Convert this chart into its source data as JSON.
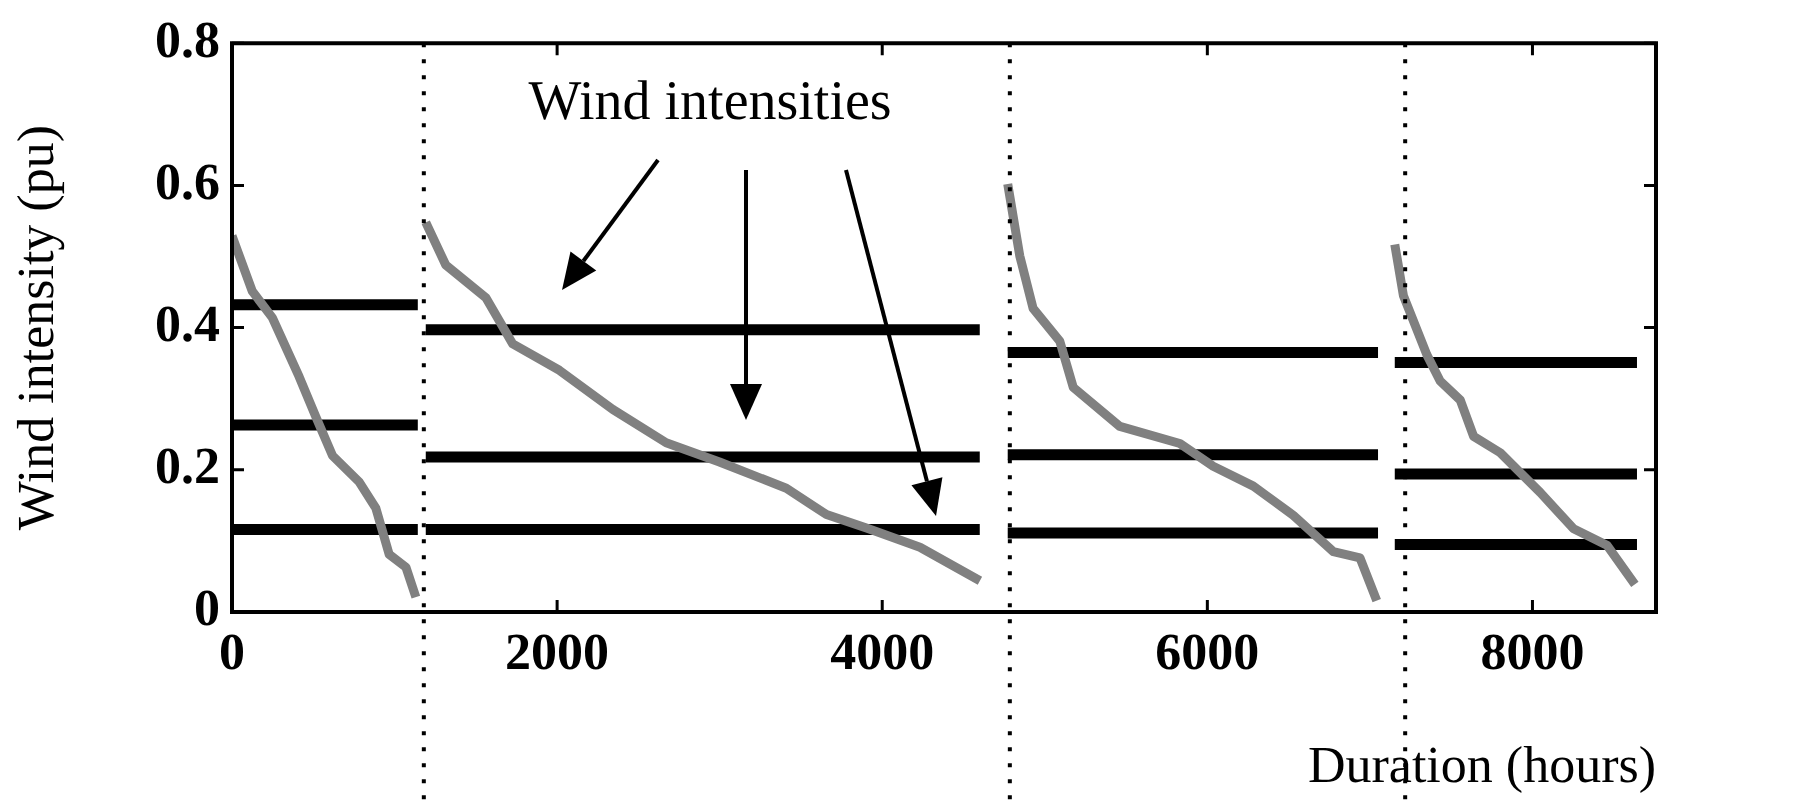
{
  "chart_data": {
    "type": "line",
    "xlabel": "Duration (hours)",
    "ylabel": "Wind intensity (pu)",
    "annotations": [
      "Wind intensities"
    ],
    "xlim": [
      0,
      8760
    ],
    "xticks": [
      0,
      2000,
      4000,
      6000,
      8000
    ],
    "ylim": [
      0,
      0.8
    ],
    "yticks": [
      0,
      0.2,
      0.4,
      0.6,
      0.8
    ],
    "grid": false,
    "legend": false,
    "marker": "none",
    "line_style": "solid",
    "ref_lines": [
      {
        "axis": "x",
        "value": 1180,
        "label": null,
        "line_style": "dotted",
        "color": "#000000"
      },
      {
        "axis": "x",
        "value": 4785,
        "label": null,
        "line_style": "dotted",
        "color": "#000000"
      },
      {
        "axis": "x",
        "value": 7217,
        "label": null,
        "line_style": "dotted",
        "color": "#000000"
      }
    ],
    "series": [
      {
        "color": "#808080",
        "x": [
          0,
          125,
          248,
          413,
          515,
          618,
          782,
          885,
          967,
          1070,
          1131
        ],
        "values": [
          0.529,
          0.451,
          0.414,
          0.331,
          0.275,
          0.22,
          0.183,
          0.146,
          0.081,
          0.063,
          0.021
        ]
      },
      {
        "color": "#808080",
        "x": [
          1192,
          1315,
          1562,
          1727,
          2014,
          2342,
          2671,
          2999,
          3410,
          3657,
          3903,
          4232,
          4601
        ],
        "values": [
          0.548,
          0.488,
          0.442,
          0.377,
          0.34,
          0.285,
          0.238,
          0.211,
          0.174,
          0.137,
          0.118,
          0.091,
          0.044
        ]
      },
      {
        "color": "#808080",
        "x": [
          4772,
          4846,
          4928,
          5092,
          5175,
          5462,
          5831,
          6036,
          6283,
          6529,
          6775,
          6939,
          7042
        ],
        "values": [
          0.602,
          0.501,
          0.427,
          0.381,
          0.316,
          0.261,
          0.237,
          0.205,
          0.177,
          0.136,
          0.085,
          0.076,
          0.016
        ]
      },
      {
        "color": "#808080",
        "x": [
          7153,
          7206,
          7350,
          7432,
          7556,
          7638,
          7802,
          8048,
          8253,
          8458,
          8630
        ],
        "values": [
          0.517,
          0.445,
          0.362,
          0.325,
          0.298,
          0.247,
          0.224,
          0.168,
          0.117,
          0.094,
          0.039
        ]
      },
      {
        "color": "#000000",
        "x": [
          0,
          1143
        ],
        "values": [
          0.432,
          0.432
        ]
      },
      {
        "color": "#000000",
        "x": [
          0,
          1143
        ],
        "values": [
          0.263,
          0.263
        ]
      },
      {
        "color": "#000000",
        "x": [
          0,
          1143
        ],
        "values": [
          0.116,
          0.116
        ]
      },
      {
        "color": "#000000",
        "x": [
          1192,
          4600
        ],
        "values": [
          0.397,
          0.397
        ]
      },
      {
        "color": "#000000",
        "x": [
          1192,
          4600
        ],
        "values": [
          0.218,
          0.218
        ]
      },
      {
        "color": "#000000",
        "x": [
          1192,
          4600
        ],
        "values": [
          0.116,
          0.116
        ]
      },
      {
        "color": "#000000",
        "x": [
          4772,
          7050
        ],
        "values": [
          0.365,
          0.365
        ]
      },
      {
        "color": "#000000",
        "x": [
          4772,
          7050
        ],
        "values": [
          0.221,
          0.221
        ]
      },
      {
        "color": "#000000",
        "x": [
          4772,
          7050
        ],
        "values": [
          0.111,
          0.111
        ]
      },
      {
        "color": "#000000",
        "x": [
          7153,
          8643
        ],
        "values": [
          0.351,
          0.351
        ]
      },
      {
        "color": "#000000",
        "x": [
          7153,
          8643
        ],
        "values": [
          0.194,
          0.194
        ]
      },
      {
        "color": "#000000",
        "x": [
          7153,
          8643
        ],
        "values": [
          0.095,
          0.095
        ]
      }
    ]
  }
}
